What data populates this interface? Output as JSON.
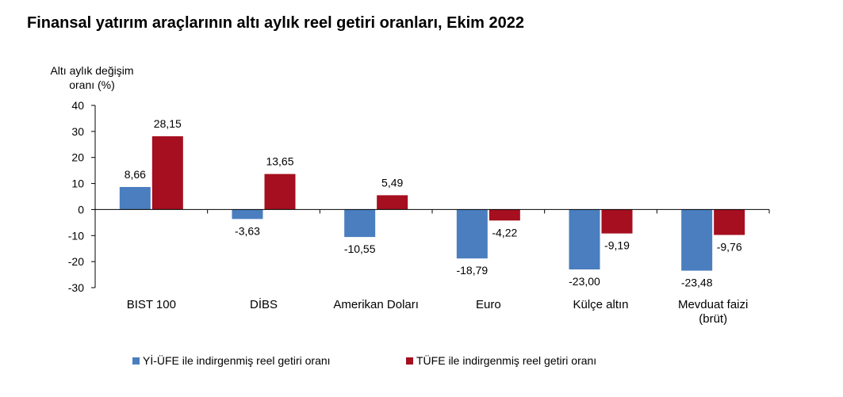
{
  "chart_data": {
    "type": "bar",
    "title": "Finansal yatırım araçlarının altı aylık reel getiri oranları, Ekim 2022",
    "ylabel_lines": [
      "Altı aylık değişim",
      "oranı (%)"
    ],
    "xlabel": "",
    "ylim": [
      -30,
      40
    ],
    "yticks": [
      40,
      30,
      20,
      10,
      0,
      -10,
      -20,
      -30
    ],
    "grid": false,
    "legend_position": "bottom",
    "categories": [
      [
        "BIST 100"
      ],
      [
        "DİBS"
      ],
      [
        "Amerikan Doları"
      ],
      [
        "Euro"
      ],
      [
        "Külçe altın"
      ],
      [
        "Mevduat faizi",
        "(brüt)"
      ]
    ],
    "series": [
      {
        "name": "Yİ-ÜFE ile indirgenmiş reel getiri oranı",
        "color": "#4a7ebf",
        "values": [
          8.66,
          -3.63,
          -10.55,
          -18.79,
          -23.0,
          -23.48
        ],
        "labels": [
          "8,66",
          "-3,63",
          "-10,55",
          "-18,79",
          "-23,00",
          "-23,48"
        ]
      },
      {
        "name": "TÜFE ile indirgenmiş reel getiri oranı",
        "color": "#a50f1f",
        "values": [
          28.15,
          13.65,
          5.49,
          -4.22,
          -9.19,
          -9.76
        ],
        "labels": [
          "28,15",
          "13,65",
          "5,49",
          "-4,22",
          "-9,19",
          "-9,76"
        ]
      }
    ]
  }
}
